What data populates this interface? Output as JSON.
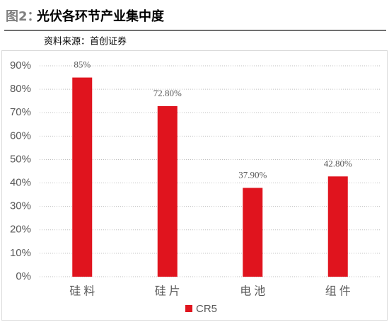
{
  "chart_data": {
    "type": "bar",
    "figure_label": "图2：",
    "title": "光伏各环节产业集中度",
    "source": "资料来源：首创证券",
    "categories": [
      "硅料",
      "硅片",
      "电池",
      "组件"
    ],
    "series": [
      {
        "name": "CR5",
        "color": "#e0141e",
        "values": [
          85,
          72.8,
          37.9,
          42.8
        ],
        "value_labels": [
          "85%",
          "72.80%",
          "37.90%",
          "42.80%"
        ]
      }
    ],
    "ylim": [
      0,
      90
    ],
    "yticks": [
      {
        "value": 0,
        "label": "0%"
      },
      {
        "value": 10,
        "label": "10%"
      },
      {
        "value": 20,
        "label": "20%"
      },
      {
        "value": 30,
        "label": "30%"
      },
      {
        "value": 40,
        "label": "40%"
      },
      {
        "value": 50,
        "label": "50%"
      },
      {
        "value": 60,
        "label": "60%"
      },
      {
        "value": 70,
        "label": "70%"
      },
      {
        "value": 80,
        "label": "80%"
      },
      {
        "value": 90,
        "label": "90%"
      }
    ],
    "grid": true,
    "legend": "bottom"
  }
}
